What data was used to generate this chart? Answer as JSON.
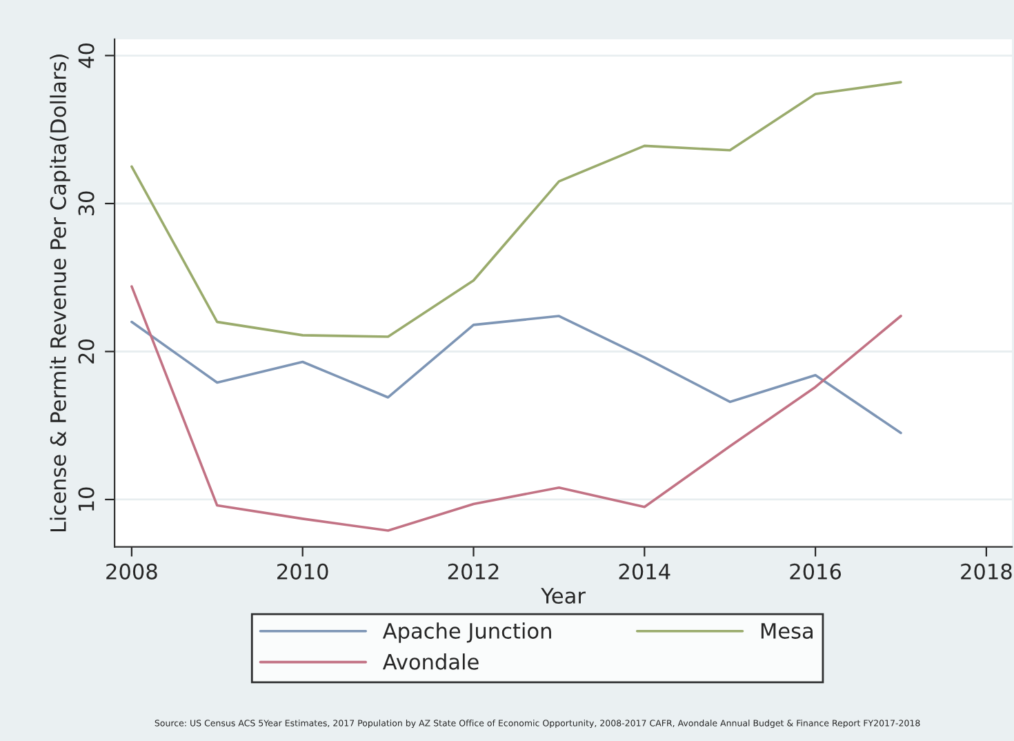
{
  "chart_data": {
    "type": "line",
    "xlabel": "Year",
    "ylabel": "License & Permit Revenue Per Capita(Dollars)",
    "x": [
      2008,
      2009,
      2010,
      2011,
      2012,
      2013,
      2014,
      2015,
      2016,
      2017
    ],
    "series": [
      {
        "name": "Apache Junction",
        "color": "#7d95b5",
        "values": [
          22.0,
          17.9,
          19.3,
          16.9,
          21.8,
          22.4,
          19.6,
          16.6,
          18.4,
          14.5
        ]
      },
      {
        "name": "Avondale",
        "color": "#c27284",
        "values": [
          24.4,
          9.6,
          8.7,
          7.9,
          9.7,
          10.8,
          9.5,
          13.6,
          17.6,
          22.4
        ]
      },
      {
        "name": "Mesa",
        "color": "#9aab6c",
        "values": [
          32.5,
          22.0,
          21.1,
          21.0,
          24.8,
          31.5,
          33.9,
          33.6,
          37.4,
          38.2
        ]
      }
    ],
    "xlim": [
      2007.8,
      2018.3
    ],
    "xticks": [
      2008,
      2010,
      2012,
      2014,
      2016,
      2018
    ],
    "ylim": [
      6.8,
      41.1
    ],
    "yticks": [
      10,
      20,
      30,
      40
    ],
    "grid": "y",
    "legend": "bottom",
    "marker": "none",
    "line_style": "solid",
    "annotations": [
      "Source: US Census ACS 5Year Estimates, 2017 Population by AZ State Office of Economic Opportunity, 2008-2017 CAFR, Avondale Annual Budget & Finance Report FY2017-2018"
    ]
  }
}
